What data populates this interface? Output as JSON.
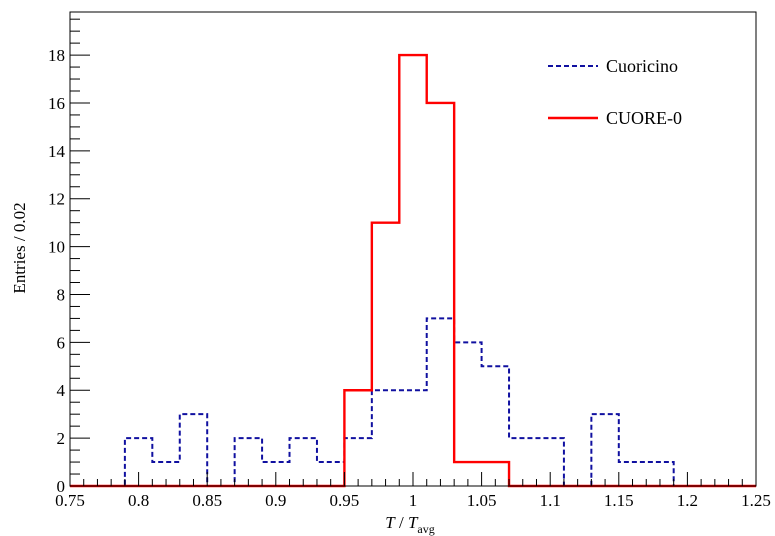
{
  "chart_data": {
    "type": "histogram-step",
    "xlabel": "T / T_avg",
    "xlabel_parts": {
      "var": "T",
      "sep": " / ",
      "var2": "T",
      "sub": "avg"
    },
    "ylabel": "Entries / 0.02",
    "xlim": [
      0.75,
      1.25
    ],
    "ylim": [
      0,
      19.8
    ],
    "grid": false,
    "legend_position": "top-right",
    "x_ticks": [
      0.75,
      0.8,
      0.85,
      0.9,
      0.95,
      1,
      1.05,
      1.1,
      1.15,
      1.2,
      1.25
    ],
    "x_tick_labels": [
      "0.75",
      "0.8",
      "0.85",
      "0.9",
      "0.95",
      "1",
      "1.05",
      "1.1",
      "1.15",
      "1.2",
      "1.25"
    ],
    "y_ticks": [
      0,
      2,
      4,
      6,
      8,
      10,
      12,
      14,
      16,
      18
    ],
    "y_tick_labels": [
      "0",
      "2",
      "4",
      "6",
      "8",
      "10",
      "12",
      "14",
      "16",
      "18"
    ],
    "bin_width": 0.02,
    "bin_edges": [
      0.75,
      0.77,
      0.79,
      0.81,
      0.83,
      0.85,
      0.87,
      0.89,
      0.91,
      0.93,
      0.95,
      0.97,
      0.99,
      1.01,
      1.03,
      1.05,
      1.07,
      1.09,
      1.11,
      1.13,
      1.15,
      1.17,
      1.19,
      1.21,
      1.23,
      1.25
    ],
    "series": [
      {
        "name": "Cuoricino",
        "color": "#1010a0",
        "style": "dashed",
        "values": [
          0,
          0,
          2,
          1,
          3,
          0,
          2,
          1,
          2,
          1,
          2,
          4,
          4,
          7,
          6,
          5,
          2,
          2,
          0,
          3,
          1,
          1,
          0,
          0,
          0
        ]
      },
      {
        "name": "CUORE-0",
        "color": "#ff0000",
        "style": "solid",
        "values": [
          0,
          0,
          0,
          0,
          0,
          0,
          0,
          0,
          0,
          0,
          4,
          11,
          18,
          16,
          1,
          1,
          0,
          0,
          0,
          0,
          0,
          0,
          0,
          0,
          0
        ]
      }
    ]
  }
}
